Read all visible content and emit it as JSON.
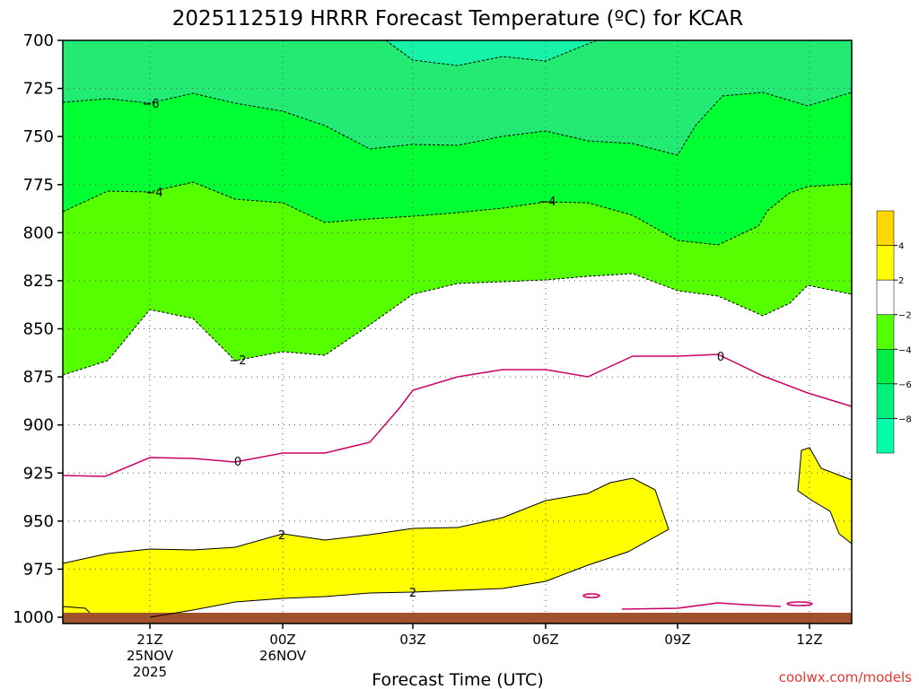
{
  "chart_data": {
    "type": "heatmap",
    "title": "2025112519 HRRR Forecast Temperature (ºC) for KCAR",
    "xlabel": "Forecast Time (UTC)",
    "ylabel": "",
    "y_ticks": [
      "700",
      "725",
      "750",
      "775",
      "800",
      "825",
      "850",
      "875",
      "900",
      "925",
      "950",
      "975",
      "1000"
    ],
    "x_ticks": [
      {
        "label": "21Z",
        "sub": [
          "25NOV",
          "2025"
        ]
      },
      {
        "label": "00Z",
        "sub": [
          "26NOV"
        ]
      },
      {
        "label": "03Z",
        "sub": []
      },
      {
        "label": "06Z",
        "sub": []
      },
      {
        "label": "09Z",
        "sub": []
      },
      {
        "label": "12Z",
        "sub": []
      }
    ],
    "grid": true,
    "legend": {
      "placement": "right",
      "ticks": [
        "4",
        "2",
        "−2",
        "−4",
        "−6",
        "−8"
      ],
      "colors": [
        "#ffd700",
        "#ffff00",
        "#ffffff",
        "#55ff00",
        "#00ee44",
        "#00f07f",
        "#00ffaa"
      ]
    },
    "contour_labels": [
      "−6",
      "−4",
      "−4",
      "−2",
      "0",
      "0",
      "2",
      "2"
    ],
    "colors": {
      "band_m8": "#16f2a6",
      "band_m6": "#22ea72",
      "band_m4": "#00ff33",
      "band_m2": "#55ff00",
      "band_p2": "#ffff00",
      "zero_line": "#cc0066",
      "ground": "#a0522d"
    },
    "credit": "coolwx.com/models"
  }
}
